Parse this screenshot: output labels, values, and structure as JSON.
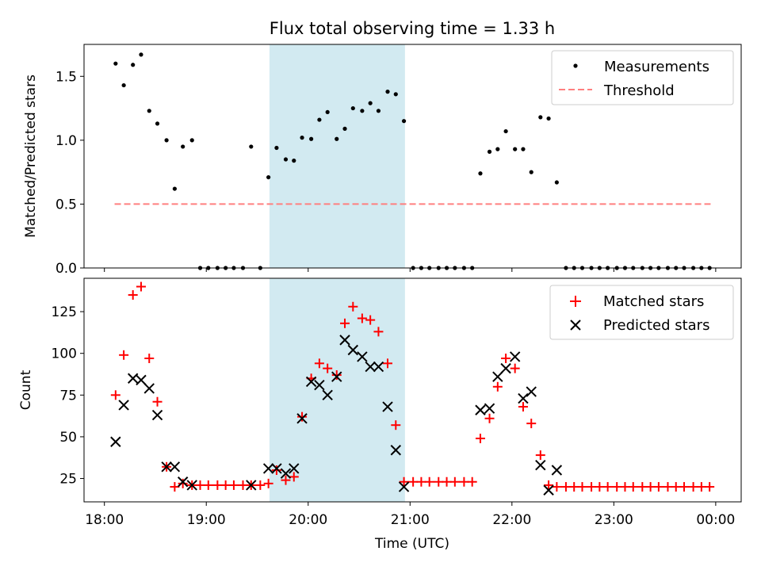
{
  "title": "Flux total observing time = 1.33 h",
  "chart_data": [
    {
      "type": "scatter",
      "ylabel": "Matched/Predicted stars",
      "ylim": [
        0,
        1.75
      ],
      "yticks": [
        0,
        0.5,
        1.0,
        1.5
      ],
      "ytick_labels": [
        "0.0",
        "0.5",
        "1.0",
        "1.5"
      ],
      "shaded_region": [
        19.62,
        20.95
      ],
      "legend_position": "top-right",
      "legend": [
        {
          "label": "Measurements",
          "marker": "dot",
          "color": "#000000"
        },
        {
          "label": "Threshold",
          "marker": "dashed-line",
          "color": "#ff7f7f"
        }
      ],
      "threshold": {
        "value": 0.5,
        "x_range": [
          18.1,
          23.95
        ],
        "color": "#ff7f7f"
      },
      "series": [
        {
          "name": "Measurements",
          "color": "#000000",
          "points": [
            [
              18.11,
              1.6
            ],
            [
              18.19,
              1.43
            ],
            [
              18.28,
              1.59
            ],
            [
              18.36,
              1.67
            ],
            [
              18.44,
              1.23
            ],
            [
              18.52,
              1.13
            ],
            [
              18.61,
              1.0
            ],
            [
              18.69,
              0.62
            ],
            [
              18.77,
              0.95
            ],
            [
              18.86,
              1.0
            ],
            [
              18.94,
              0.0
            ],
            [
              19.02,
              0.0
            ],
            [
              19.11,
              0.0
            ],
            [
              19.19,
              0.0
            ],
            [
              19.27,
              0.0
            ],
            [
              19.36,
              0.0
            ],
            [
              19.44,
              0.95
            ],
            [
              19.53,
              0.0
            ],
            [
              19.61,
              0.71
            ],
            [
              19.69,
              0.94
            ],
            [
              19.78,
              0.85
            ],
            [
              19.86,
              0.84
            ],
            [
              19.94,
              1.02
            ],
            [
              20.03,
              1.01
            ],
            [
              20.11,
              1.16
            ],
            [
              20.19,
              1.22
            ],
            [
              20.28,
              1.01
            ],
            [
              20.36,
              1.09
            ],
            [
              20.44,
              1.25
            ],
            [
              20.53,
              1.23
            ],
            [
              20.61,
              1.29
            ],
            [
              20.69,
              1.23
            ],
            [
              20.78,
              1.38
            ],
            [
              20.86,
              1.36
            ],
            [
              20.94,
              1.15
            ],
            [
              21.03,
              0.0
            ],
            [
              21.11,
              0.0
            ],
            [
              21.19,
              0.0
            ],
            [
              21.28,
              0.0
            ],
            [
              21.36,
              0.0
            ],
            [
              21.44,
              0.0
            ],
            [
              21.53,
              0.0
            ],
            [
              21.61,
              0.0
            ],
            [
              21.69,
              0.74
            ],
            [
              21.78,
              0.91
            ],
            [
              21.86,
              0.93
            ],
            [
              21.94,
              1.07
            ],
            [
              22.03,
              0.93
            ],
            [
              22.11,
              0.93
            ],
            [
              22.19,
              0.75
            ],
            [
              22.28,
              1.18
            ],
            [
              22.36,
              1.17
            ],
            [
              22.44,
              0.67
            ],
            [
              22.53,
              0.0
            ],
            [
              22.61,
              0.0
            ],
            [
              22.69,
              0.0
            ],
            [
              22.78,
              0.0
            ],
            [
              22.86,
              0.0
            ],
            [
              22.94,
              0.0
            ],
            [
              23.03,
              0.0
            ],
            [
              23.11,
              0.0
            ],
            [
              23.19,
              0.0
            ],
            [
              23.28,
              0.0
            ],
            [
              23.36,
              0.0
            ],
            [
              23.44,
              0.0
            ],
            [
              23.53,
              0.0
            ],
            [
              23.61,
              0.0
            ],
            [
              23.69,
              0.0
            ],
            [
              23.78,
              0.0
            ],
            [
              23.86,
              0.0
            ],
            [
              23.94,
              0.0
            ]
          ]
        }
      ]
    },
    {
      "type": "scatter",
      "xlabel": "Time (UTC)",
      "ylabel": "Count",
      "xlim": [
        17.8,
        24.25
      ],
      "ylim": [
        11,
        145
      ],
      "xticks": [
        18,
        19,
        20,
        21,
        22,
        23,
        24
      ],
      "xtick_labels": [
        "18:00",
        "19:00",
        "20:00",
        "21:00",
        "22:00",
        "23:00",
        "00:00"
      ],
      "yticks": [
        25,
        50,
        75,
        100,
        125
      ],
      "ytick_labels": [
        "25",
        "50",
        "75",
        "100",
        "125"
      ],
      "shaded_region": [
        19.62,
        20.95
      ],
      "legend_position": "top-right",
      "legend": [
        {
          "label": "Matched stars",
          "marker": "plus",
          "color": "#ff0000"
        },
        {
          "label": "Predicted stars",
          "marker": "x",
          "color": "#000000"
        }
      ],
      "series": [
        {
          "name": "Matched stars",
          "marker": "plus",
          "color": "#ff0000",
          "points": [
            [
              18.11,
              75
            ],
            [
              18.19,
              99
            ],
            [
              18.28,
              135
            ],
            [
              18.36,
              140
            ],
            [
              18.44,
              97
            ],
            [
              18.52,
              71
            ],
            [
              18.61,
              32
            ],
            [
              18.69,
              20
            ],
            [
              18.77,
              22
            ],
            [
              18.86,
              21
            ],
            [
              18.94,
              21
            ],
            [
              19.02,
              21
            ],
            [
              19.11,
              21
            ],
            [
              19.19,
              21
            ],
            [
              19.27,
              21
            ],
            [
              19.36,
              21
            ],
            [
              19.44,
              21
            ],
            [
              19.53,
              21
            ],
            [
              19.61,
              22
            ],
            [
              19.69,
              30
            ],
            [
              19.78,
              24
            ],
            [
              19.86,
              26
            ],
            [
              19.94,
              62
            ],
            [
              20.03,
              85
            ],
            [
              20.11,
              94
            ],
            [
              20.19,
              91
            ],
            [
              20.28,
              87
            ],
            [
              20.36,
              118
            ],
            [
              20.44,
              128
            ],
            [
              20.53,
              121
            ],
            [
              20.61,
              120
            ],
            [
              20.69,
              113
            ],
            [
              20.78,
              94
            ],
            [
              20.86,
              57
            ],
            [
              20.94,
              23
            ],
            [
              21.03,
              23
            ],
            [
              21.11,
              23
            ],
            [
              21.19,
              23
            ],
            [
              21.28,
              23
            ],
            [
              21.36,
              23
            ],
            [
              21.44,
              23
            ],
            [
              21.53,
              23
            ],
            [
              21.61,
              23
            ],
            [
              21.69,
              49
            ],
            [
              21.78,
              61
            ],
            [
              21.86,
              80
            ],
            [
              21.94,
              97
            ],
            [
              22.03,
              91
            ],
            [
              22.11,
              68
            ],
            [
              22.19,
              58
            ],
            [
              22.28,
              39
            ],
            [
              22.36,
              21
            ],
            [
              22.44,
              20
            ],
            [
              22.53,
              20
            ],
            [
              22.61,
              20
            ],
            [
              22.69,
              20
            ],
            [
              22.78,
              20
            ],
            [
              22.86,
              20
            ],
            [
              22.94,
              20
            ],
            [
              23.03,
              20
            ],
            [
              23.11,
              20
            ],
            [
              23.19,
              20
            ],
            [
              23.28,
              20
            ],
            [
              23.36,
              20
            ],
            [
              23.44,
              20
            ],
            [
              23.53,
              20
            ],
            [
              23.61,
              20
            ],
            [
              23.69,
              20
            ],
            [
              23.78,
              20
            ],
            [
              23.86,
              20
            ],
            [
              23.94,
              20
            ]
          ]
        },
        {
          "name": "Predicted stars",
          "marker": "x",
          "color": "#000000",
          "points": [
            [
              18.11,
              47
            ],
            [
              18.19,
              69
            ],
            [
              18.28,
              85
            ],
            [
              18.36,
              84
            ],
            [
              18.44,
              79
            ],
            [
              18.52,
              63
            ],
            [
              18.61,
              32
            ],
            [
              18.69,
              32
            ],
            [
              18.77,
              23
            ],
            [
              18.86,
              21
            ],
            [
              19.44,
              21
            ],
            [
              19.61,
              31
            ],
            [
              19.69,
              31
            ],
            [
              19.78,
              28
            ],
            [
              19.86,
              31
            ],
            [
              19.94,
              61
            ],
            [
              20.03,
              83
            ],
            [
              20.11,
              81
            ],
            [
              20.19,
              75
            ],
            [
              20.28,
              86
            ],
            [
              20.36,
              108
            ],
            [
              20.44,
              102
            ],
            [
              20.53,
              98
            ],
            [
              20.61,
              92
            ],
            [
              20.69,
              92
            ],
            [
              20.78,
              68
            ],
            [
              20.86,
              42
            ],
            [
              20.94,
              20
            ],
            [
              21.69,
              66
            ],
            [
              21.78,
              67
            ],
            [
              21.86,
              86
            ],
            [
              21.94,
              91
            ],
            [
              22.03,
              98
            ],
            [
              22.11,
              73
            ],
            [
              22.19,
              77
            ],
            [
              22.28,
              33
            ],
            [
              22.36,
              18
            ],
            [
              22.44,
              30
            ]
          ]
        }
      ]
    }
  ]
}
